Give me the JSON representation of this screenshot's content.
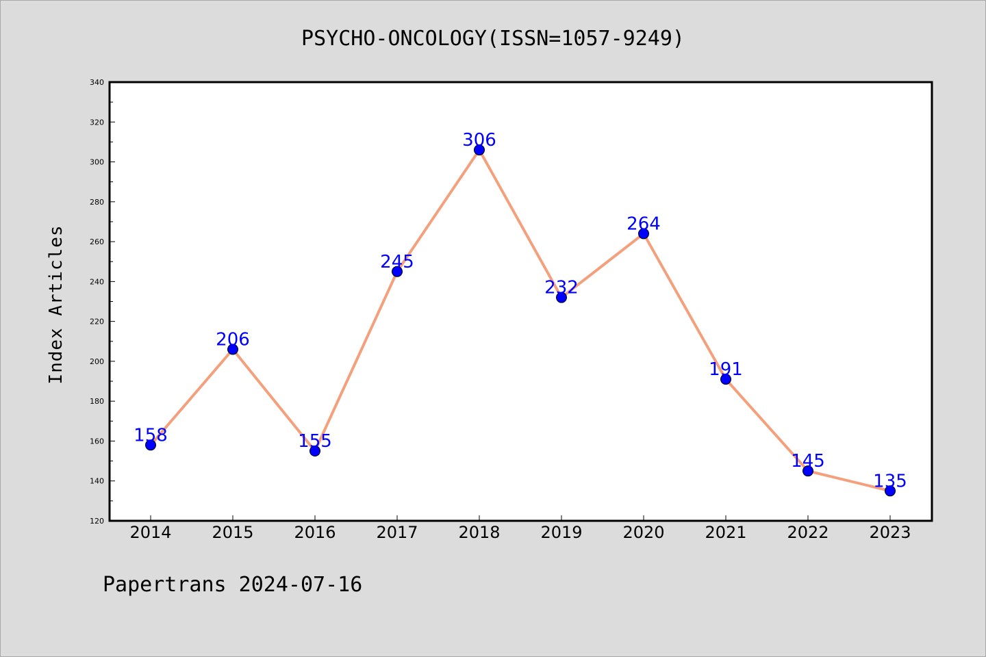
{
  "chart_data": {
    "type": "line",
    "title": "PSYCHO-ONCOLOGY(ISSN=1057-9249)",
    "xlabel": "",
    "ylabel": "Index Articles",
    "categories": [
      "2014",
      "2015",
      "2016",
      "2017",
      "2018",
      "2019",
      "2020",
      "2021",
      "2022",
      "2023"
    ],
    "series": [
      {
        "values": [
          158,
          206,
          155,
          245,
          306,
          232,
          264,
          191,
          145,
          135
        ]
      }
    ],
    "ylim": [
      120,
      340
    ],
    "yticks": [
      120,
      140,
      160,
      180,
      200,
      220,
      240,
      260,
      280,
      300,
      320,
      340
    ],
    "grid": false,
    "legend": "none",
    "colors": {
      "line": "#f4a07c",
      "marker": "#0000ff",
      "label": "#0000ff",
      "plot_background": "#ffffff",
      "page_background": "#dcdcdc"
    }
  },
  "footer": {
    "text": "Papertrans 2024-07-16"
  }
}
